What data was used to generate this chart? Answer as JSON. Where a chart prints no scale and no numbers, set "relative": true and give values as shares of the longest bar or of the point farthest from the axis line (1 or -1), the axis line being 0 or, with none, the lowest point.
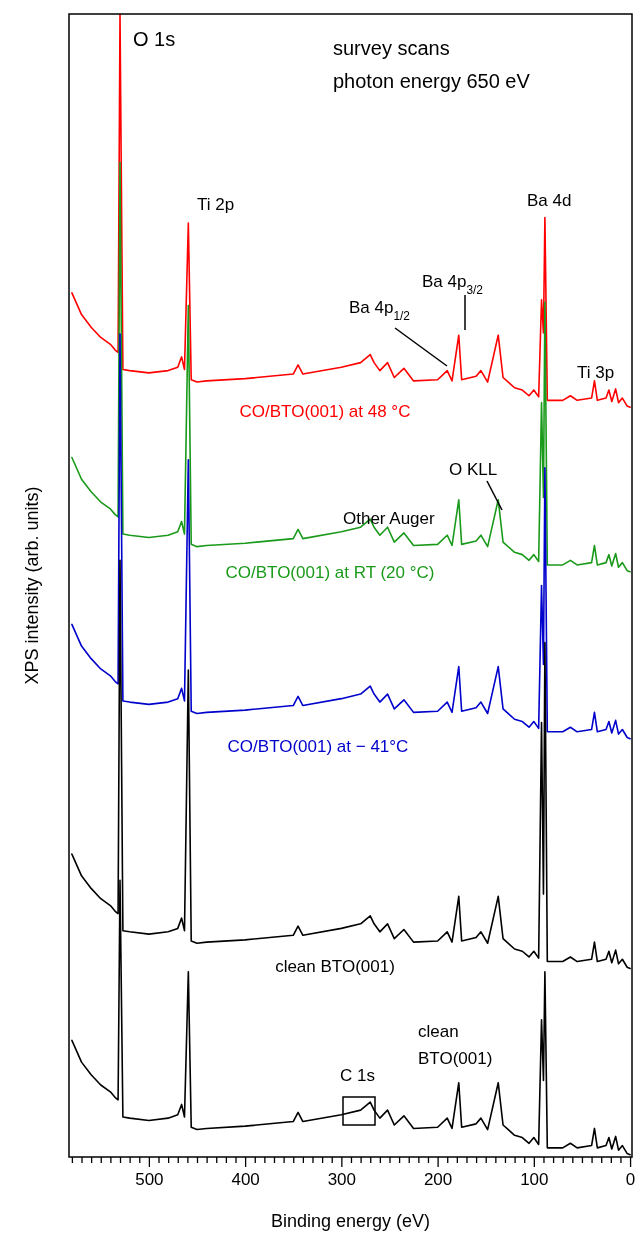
{
  "chart_data": {
    "type": "line",
    "relative": true,
    "xlabel": "Binding energy (eV)",
    "ylabel": "XPS intensity (arb. units)",
    "xlim": [
      583,
      -2
    ],
    "xticks": [
      {
        "value": 580,
        "label": null
      },
      {
        "value": 570,
        "label": null
      },
      {
        "value": 560,
        "label": null
      },
      {
        "value": 550,
        "label": null
      },
      {
        "value": 540,
        "label": null
      },
      {
        "value": 530,
        "label": null
      },
      {
        "value": 520,
        "label": null
      },
      {
        "value": 510,
        "label": null
      },
      500,
      {
        "value": 490,
        "label": null
      },
      {
        "value": 480,
        "label": null
      },
      {
        "value": 470,
        "label": null
      },
      {
        "value": 460,
        "label": null
      },
      {
        "value": 450,
        "label": null
      },
      {
        "value": 440,
        "label": null
      },
      {
        "value": 430,
        "label": null
      },
      {
        "value": 420,
        "label": null
      },
      {
        "value": 410,
        "label": null
      },
      400,
      {
        "value": 390,
        "label": null
      },
      {
        "value": 380,
        "label": null
      },
      {
        "value": 370,
        "label": null
      },
      {
        "value": 360,
        "label": null
      },
      {
        "value": 350,
        "label": null
      },
      {
        "value": 340,
        "label": null
      },
      {
        "value": 330,
        "label": null
      },
      {
        "value": 320,
        "label": null
      },
      {
        "value": 310,
        "label": null
      },
      300,
      {
        "value": 290,
        "label": null
      },
      {
        "value": 280,
        "label": null
      },
      {
        "value": 270,
        "label": null
      },
      {
        "value": 260,
        "label": null
      },
      {
        "value": 250,
        "label": null
      },
      {
        "value": 240,
        "label": null
      },
      {
        "value": 230,
        "label": null
      },
      {
        "value": 220,
        "label": null
      },
      {
        "value": 210,
        "label": null
      },
      200,
      {
        "value": 190,
        "label": null
      },
      {
        "value": 180,
        "label": null
      },
      {
        "value": 170,
        "label": null
      },
      {
        "value": 160,
        "label": null
      },
      {
        "value": 150,
        "label": null
      },
      {
        "value": 140,
        "label": null
      },
      {
        "value": 130,
        "label": null
      },
      {
        "value": 120,
        "label": null
      },
      {
        "value": 110,
        "label": null
      },
      100,
      {
        "value": 90,
        "label": null
      },
      {
        "value": 80,
        "label": null
      },
      {
        "value": 70,
        "label": null
      },
      {
        "value": 60,
        "label": null
      },
      {
        "value": 50,
        "label": null
      },
      {
        "value": 40,
        "label": null
      },
      {
        "value": 30,
        "label": null
      },
      {
        "value": 20,
        "label": null
      },
      {
        "value": 10,
        "label": null
      },
      0
    ],
    "x": [
      580,
      570,
      560,
      550,
      540,
      535,
      532,
      530,
      527,
      520,
      500,
      480,
      470,
      466,
      463,
      459,
      456,
      450,
      440,
      400,
      350,
      345,
      340,
      300,
      280,
      270,
      266,
      260,
      252,
      245,
      235,
      225,
      200,
      190,
      185,
      178,
      175,
      160,
      155,
      148,
      137,
      132,
      120,
      112,
      105,
      100,
      95,
      92,
      90,
      88.5,
      86,
      70,
      62,
      55,
      40,
      37,
      34,
      25,
      22,
      19,
      15,
      12,
      8,
      3,
      0
    ],
    "series": [
      {
        "name": "CO/BTO(001) at 48 °C",
        "color": "#ff0000",
        "values": [
          0.756,
          0.737,
          0.726,
          0.717,
          0.711,
          0.706,
          0.704,
          1,
          0.689,
          0.688,
          0.686,
          0.688,
          0.691,
          0.7,
          0.689,
          0.817,
          0.68,
          0.678,
          0.679,
          0.681,
          0.685,
          0.693,
          0.685,
          0.691,
          0.695,
          0.702,
          0.695,
          0.688,
          0.695,
          0.682,
          0.69,
          0.679,
          0.68,
          0.688,
          0.679,
          0.719,
          0.68,
          0.683,
          0.688,
          0.678,
          0.719,
          0.682,
          0.673,
          0.671,
          0.666,
          0.671,
          0.665,
          0.75,
          0.721,
          0.822,
          0.662,
          0.662,
          0.666,
          0.662,
          0.664,
          0.679,
          0.662,
          0.664,
          0.671,
          0.661,
          0.672,
          0.66,
          0.664,
          0.657,
          0.656
        ]
      },
      {
        "name": "CO/BTO(001) at RT (20 °C)",
        "color": "#1a9a1a",
        "values": [
          0.612,
          0.593,
          0.582,
          0.573,
          0.567,
          0.562,
          0.56,
          0.87,
          0.545,
          0.544,
          0.542,
          0.544,
          0.547,
          0.556,
          0.545,
          0.745,
          0.536,
          0.534,
          0.535,
          0.537,
          0.541,
          0.549,
          0.541,
          0.547,
          0.551,
          0.558,
          0.551,
          0.544,
          0.551,
          0.538,
          0.546,
          0.535,
          0.536,
          0.544,
          0.535,
          0.575,
          0.536,
          0.539,
          0.544,
          0.534,
          0.575,
          0.538,
          0.529,
          0.527,
          0.522,
          0.527,
          0.521,
          0.66,
          0.577,
          0.748,
          0.518,
          0.518,
          0.522,
          0.518,
          0.52,
          0.535,
          0.518,
          0.52,
          0.527,
          0.517,
          0.528,
          0.516,
          0.52,
          0.513,
          0.512
        ]
      },
      {
        "name": "CO/BTO(001) at − 41°C",
        "color": "#0000cc",
        "values": [
          0.466,
          0.447,
          0.436,
          0.427,
          0.421,
          0.416,
          0.414,
          0.72,
          0.399,
          0.398,
          0.396,
          0.398,
          0.401,
          0.41,
          0.399,
          0.61,
          0.39,
          0.388,
          0.389,
          0.391,
          0.395,
          0.403,
          0.395,
          0.401,
          0.405,
          0.412,
          0.405,
          0.398,
          0.405,
          0.392,
          0.4,
          0.389,
          0.39,
          0.398,
          0.389,
          0.429,
          0.39,
          0.393,
          0.398,
          0.388,
          0.429,
          0.392,
          0.383,
          0.381,
          0.376,
          0.381,
          0.375,
          0.5,
          0.431,
          0.603,
          0.372,
          0.372,
          0.376,
          0.372,
          0.374,
          0.389,
          0.372,
          0.374,
          0.381,
          0.371,
          0.382,
          0.37,
          0.374,
          0.367,
          0.366
        ]
      },
      {
        "name": "clean BTO(001)",
        "color": "#000000",
        "values": [
          0.265,
          0.246,
          0.235,
          0.226,
          0.22,
          0.215,
          0.213,
          0.522,
          0.198,
          0.197,
          0.195,
          0.197,
          0.2,
          0.209,
          0.198,
          0.426,
          0.189,
          0.187,
          0.188,
          0.19,
          0.194,
          0.202,
          0.194,
          0.2,
          0.204,
          0.211,
          0.204,
          0.197,
          0.204,
          0.191,
          0.199,
          0.188,
          0.189,
          0.197,
          0.188,
          0.228,
          0.189,
          0.192,
          0.197,
          0.187,
          0.228,
          0.191,
          0.182,
          0.18,
          0.175,
          0.18,
          0.174,
          0.38,
          0.23,
          0.45,
          0.171,
          0.171,
          0.175,
          0.171,
          0.173,
          0.188,
          0.171,
          0.173,
          0.18,
          0.17,
          0.181,
          0.169,
          0.173,
          0.166,
          0.165
        ]
      },
      {
        "name": "clean BTO(001)",
        "color": "#000000",
        "values": [
          0.102,
          0.083,
          0.072,
          0.063,
          0.057,
          0.052,
          0.05,
          0.242,
          0.035,
          0.034,
          0.032,
          0.034,
          0.037,
          0.046,
          0.035,
          0.162,
          0.026,
          0.024,
          0.025,
          0.027,
          0.031,
          0.039,
          0.031,
          0.037,
          0.041,
          0.048,
          0.041,
          0.034,
          0.041,
          0.028,
          0.036,
          0.025,
          0.026,
          0.034,
          0.025,
          0.065,
          0.026,
          0.029,
          0.034,
          0.024,
          0.065,
          0.028,
          0.019,
          0.017,
          0.012,
          0.017,
          0.011,
          0.12,
          0.067,
          0.162,
          0.008,
          0.008,
          0.012,
          0.008,
          0.01,
          0.025,
          0.008,
          0.01,
          0.017,
          0.007,
          0.018,
          0.006,
          0.01,
          0.003,
          0.002
        ]
      }
    ],
    "annotations": [
      "O 1s",
      "survey scans",
      "photon energy 650 eV",
      "Ti 2p",
      "Ba 4d",
      "Ba 4p$_{3/2}$",
      "Ba 4p$_{1/2}$",
      "Ti 3p",
      "O KLL",
      "Other Auger",
      "C 1s"
    ]
  }
}
